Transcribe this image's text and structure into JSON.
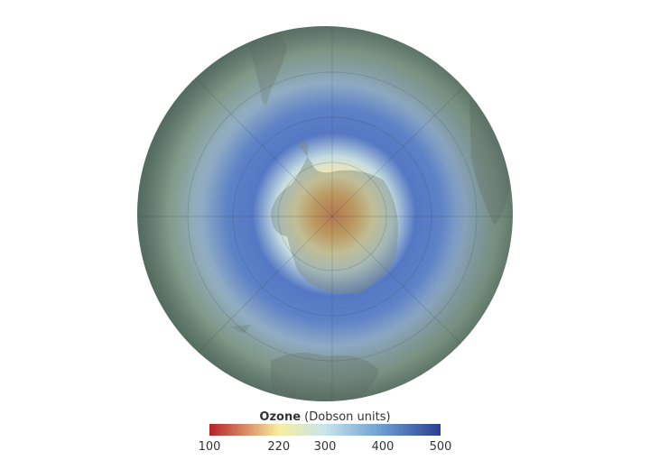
{
  "colorbar": {
    "title": "Ozone",
    "unit": "(Dobson units)",
    "lim": [
      100,
      500
    ],
    "ticks": [
      100,
      220,
      300,
      400,
      500
    ],
    "colors": [
      "#b8202a",
      "#f7ee9e",
      "#c9e4ec",
      "#6b9bd0",
      "#2b3f92"
    ]
  }
}
